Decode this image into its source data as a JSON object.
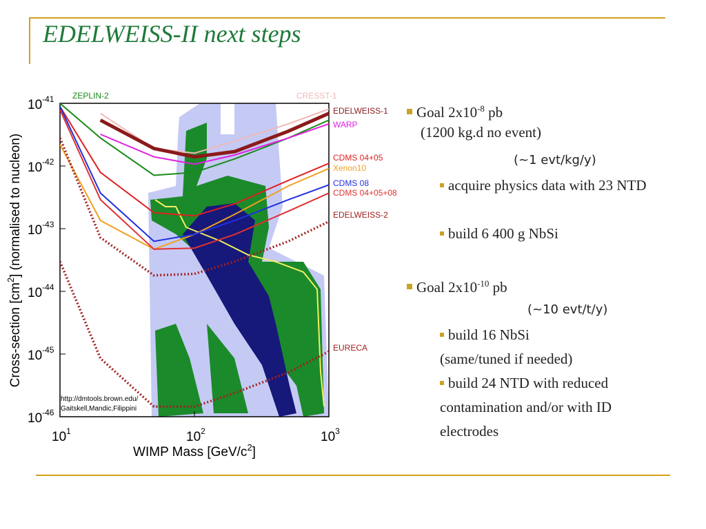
{
  "slide": {
    "title": "EDELWEISS-II next steps",
    "goal1": {
      "text": "Goal 2x10",
      "sup": "-8",
      "unit": " pb"
    },
    "goal1_note": "(1200 kg.d no event)",
    "goal1_rate": "(~1 evt/kg/y)",
    "goal1_items": [
      "acquire physics data with 23 NTD",
      "build 6 400 g NbSi"
    ],
    "goal2": {
      "text": "Goal 2x10",
      "sup": "-10",
      "unit": " pb"
    },
    "goal2_rate": "(~10 evt/t/y)",
    "goal2_item1": "build 16 NbSi",
    "goal2_item1_note": "(same/tuned if needed)",
    "goal2_item2": "build 24 NTD with reduced contamination and/or with ID electrodes"
  },
  "chart_data": {
    "type": "line",
    "xlabel": [
      "WIMP Mass [GeV/c",
      "2",
      "]"
    ],
    "ylabel": [
      "Cross-section [cm",
      "2",
      "] (normalised to nucleon)"
    ],
    "annotation": [
      "http://dmtools.brown.edu/",
      "Gaitskell,Mandic,Filippini"
    ],
    "xscale": "log",
    "yscale": "log",
    "xlim": [
      10,
      1000
    ],
    "ylim": [
      1e-46,
      1e-41
    ],
    "xticks": [
      {
        "value": 10,
        "label": "10",
        "exp": "1"
      },
      {
        "value": 100,
        "label": "10",
        "exp": "2"
      },
      {
        "value": 1000,
        "label": "10",
        "exp": "3"
      }
    ],
    "yticks": [
      {
        "value": 1e-41,
        "label": "10",
        "exp": "-41"
      },
      {
        "value": 1e-42,
        "label": "10",
        "exp": "-42"
      },
      {
        "value": 1e-43,
        "label": "10",
        "exp": "-43"
      },
      {
        "value": 1e-44,
        "label": "10",
        "exp": "-44"
      },
      {
        "value": 1e-45,
        "label": "10",
        "exp": "-45"
      },
      {
        "value": 1e-46,
        "label": "10",
        "exp": "-46"
      }
    ],
    "x": [
      10,
      20,
      50,
      100,
      200,
      500,
      1000
    ],
    "series": [
      {
        "name": "ZEPLIN-2",
        "color": "#1a8a1a",
        "style": "solid",
        "values": [
          1e-41,
          2.8e-42,
          7.1e-43,
          7.9e-43,
          1.3e-42,
          2.8e-42,
          5.4e-42
        ]
      },
      {
        "name": "CRESST-1",
        "color": "#f0b8b8",
        "style": "solid",
        "values": [
          null,
          6.9e-42,
          1.9e-42,
          1.6e-42,
          2.5e-42,
          4.7e-42,
          8.1e-42
        ]
      },
      {
        "name": "EDELWEISS-1",
        "color": "#8b1a1a",
        "style": "thick",
        "values": [
          null,
          5.4e-42,
          1.9e-42,
          1.4e-42,
          1.7e-42,
          3.6e-42,
          6.9e-42
        ]
      },
      {
        "name": "WARP",
        "color": "#e020e0",
        "style": "solid",
        "values": [
          null,
          3.2e-42,
          1.4e-42,
          1.07e-42,
          1.5e-42,
          2.8e-42,
          4.7e-42
        ]
      },
      {
        "name": "CDMS 04+05",
        "color": "#e02020",
        "style": "solid",
        "values": [
          8.9e-42,
          7.9e-43,
          1.8e-43,
          1.6e-43,
          2.5e-43,
          5.9e-43,
          1.1e-42
        ]
      },
      {
        "name": "Xenon10",
        "color": "#f0a020",
        "style": "solid",
        "values": [
          2.2e-42,
          1.35e-43,
          4.7e-44,
          8.1e-44,
          1.7e-43,
          4.8e-43,
          9.1e-43
        ]
      },
      {
        "name": "CDMS 08",
        "color": "#2030e0",
        "style": "solid",
        "values": [
          8.9e-42,
          3.7e-43,
          6.3e-44,
          8.1e-44,
          1.35e-43,
          2.9e-43,
          5e-43
        ]
      },
      {
        "name": "CDMS 04+05+08",
        "color": "#e03030",
        "style": "solid",
        "values": [
          7.9e-42,
          2.9e-43,
          4.7e-44,
          4.9e-44,
          8.1e-44,
          1.9e-43,
          3.7e-43
        ]
      },
      {
        "name": "EDELWEISS-2",
        "color": "#a02020",
        "style": "dotted",
        "values": [
          2.8e-42,
          7.2e-44,
          1.8e-44,
          1.9e-44,
          3e-44,
          6.3e-44,
          1.3e-43
        ]
      },
      {
        "name": "EURECA",
        "color": "#a02020",
        "style": "dotted",
        "values": [
          3e-44,
          8.5e-46,
          1.45e-46,
          1.45e-46,
          2.4e-46,
          5.1e-46,
          1.1e-45
        ]
      }
    ]
  }
}
